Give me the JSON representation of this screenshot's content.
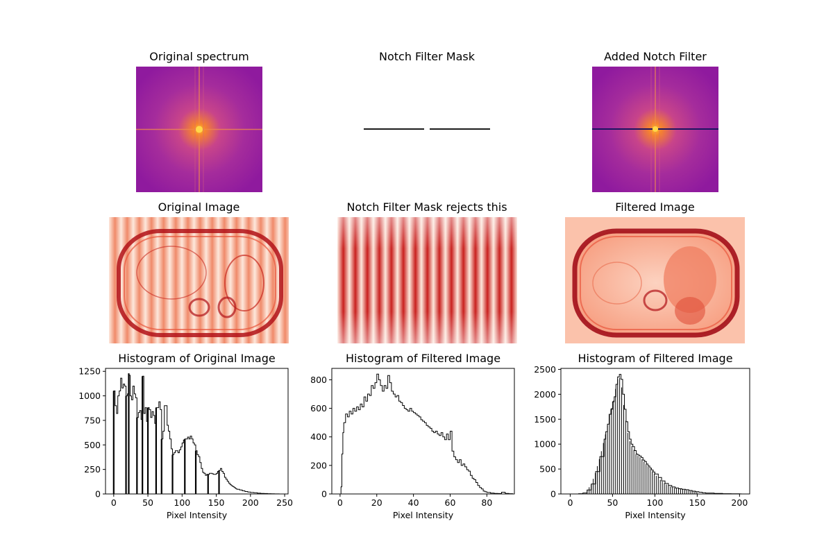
{
  "titles": {
    "spectrum": "Original spectrum",
    "mask": "Notch Filter Mask",
    "added": "Added Notch Filter",
    "orig_image": "Original Image",
    "rejects": "Notch Filter Mask rejects this",
    "filtered_image": "Filtered Image"
  },
  "colors": {
    "spectrum_bg": "#8f1a9e",
    "spectrum_mid": "#c8448a",
    "spectrum_center": "#fdbe2b",
    "notch_line": "#1a1a1a",
    "notch_line_dark": "#1b1560",
    "reds_light": "#fde8dc",
    "reds_mid": "#ef6a4c",
    "reds_dark": "#b11218"
  },
  "chart_data": [
    {
      "type": "bar",
      "title": "Histogram of Original Image",
      "xlabel": "Pixel Intensity",
      "ylabel": "",
      "xlim": [
        -12,
        255
      ],
      "ylim": [
        0,
        1280
      ],
      "xticks": [
        0,
        50,
        100,
        150,
        200,
        250
      ],
      "yticks": [
        0,
        250,
        500,
        750,
        1000,
        1250
      ],
      "envelope": [
        [
          0,
          1050
        ],
        [
          2,
          900
        ],
        [
          4,
          820
        ],
        [
          6,
          1000
        ],
        [
          8,
          1050
        ],
        [
          10,
          1180
        ],
        [
          12,
          1080
        ],
        [
          14,
          1120
        ],
        [
          16,
          1100
        ],
        [
          18,
          1000
        ],
        [
          20,
          1020
        ],
        [
          22,
          1210
        ],
        [
          24,
          1000
        ],
        [
          26,
          960
        ],
        [
          28,
          1100
        ],
        [
          30,
          1020
        ],
        [
          32,
          980
        ],
        [
          34,
          780
        ],
        [
          36,
          830
        ],
        [
          38,
          850
        ],
        [
          40,
          760
        ],
        [
          42,
          1200
        ],
        [
          44,
          820
        ],
        [
          46,
          880
        ],
        [
          48,
          740
        ],
        [
          50,
          880
        ],
        [
          52,
          860
        ],
        [
          54,
          780
        ],
        [
          56,
          840
        ],
        [
          58,
          800
        ],
        [
          60,
          720
        ],
        [
          62,
          880
        ],
        [
          64,
          880
        ],
        [
          66,
          940
        ],
        [
          68,
          860
        ],
        [
          70,
          560
        ],
        [
          72,
          640
        ],
        [
          74,
          900
        ],
        [
          76,
          900
        ],
        [
          78,
          700
        ],
        [
          80,
          640
        ],
        [
          82,
          560
        ],
        [
          84,
          460
        ],
        [
          86,
          400
        ],
        [
          88,
          420
        ],
        [
          90,
          440
        ],
        [
          92,
          440
        ],
        [
          94,
          420
        ],
        [
          96,
          450
        ],
        [
          98,
          480
        ],
        [
          100,
          520
        ],
        [
          102,
          550
        ],
        [
          104,
          560
        ],
        [
          106,
          560
        ],
        [
          108,
          580
        ],
        [
          110,
          560
        ],
        [
          112,
          590
        ],
        [
          114,
          560
        ],
        [
          116,
          520
        ],
        [
          118,
          500
        ],
        [
          120,
          440
        ],
        [
          122,
          400
        ],
        [
          124,
          380
        ],
        [
          126,
          320
        ],
        [
          128,
          260
        ],
        [
          130,
          220
        ],
        [
          132,
          210
        ],
        [
          134,
          190
        ],
        [
          136,
          200
        ],
        [
          138,
          200
        ],
        [
          140,
          210
        ],
        [
          142,
          210
        ],
        [
          144,
          205
        ],
        [
          146,
          200
        ],
        [
          148,
          200
        ],
        [
          150,
          210
        ],
        [
          152,
          230
        ],
        [
          154,
          240
        ],
        [
          156,
          260
        ],
        [
          158,
          230
        ],
        [
          160,
          210
        ],
        [
          162,
          170
        ],
        [
          164,
          150
        ],
        [
          166,
          130
        ],
        [
          168,
          110
        ],
        [
          170,
          95
        ],
        [
          172,
          85
        ],
        [
          174,
          75
        ],
        [
          176,
          65
        ],
        [
          178,
          55
        ],
        [
          180,
          48
        ],
        [
          184,
          40
        ],
        [
          188,
          32
        ],
        [
          192,
          25
        ],
        [
          196,
          20
        ],
        [
          200,
          15
        ],
        [
          205,
          12
        ],
        [
          210,
          8
        ],
        [
          215,
          6
        ],
        [
          220,
          4
        ],
        [
          225,
          3
        ],
        [
          230,
          2
        ],
        [
          235,
          1
        ],
        [
          240,
          1
        ]
      ],
      "spikes": [
        [
          0,
          1050
        ],
        [
          18,
          1000
        ],
        [
          22,
          1230
        ],
        [
          34,
          780
        ],
        [
          42,
          1200
        ],
        [
          50,
          880
        ],
        [
          62,
          880
        ],
        [
          70,
          560
        ],
        [
          86,
          400
        ],
        [
          104,
          560
        ],
        [
          120,
          440
        ],
        [
          138,
          200
        ],
        [
          154,
          240
        ]
      ]
    },
    {
      "type": "bar",
      "title": "Histogram of Filtered Image",
      "xlabel": "Pixel Intensity",
      "ylabel": "",
      "xlim": [
        -4.5,
        95
      ],
      "ylim": [
        0,
        880
      ],
      "xticks": [
        0,
        20,
        40,
        60,
        80
      ],
      "yticks": [
        0,
        200,
        400,
        600,
        800
      ],
      "envelope": [
        [
          0,
          0
        ],
        [
          0.5,
          50
        ],
        [
          1,
          280
        ],
        [
          1.5,
          430
        ],
        [
          2,
          500
        ],
        [
          3,
          560
        ],
        [
          4,
          540
        ],
        [
          5,
          580
        ],
        [
          6,
          560
        ],
        [
          7,
          600
        ],
        [
          8,
          580
        ],
        [
          9,
          610
        ],
        [
          10,
          590
        ],
        [
          11,
          630
        ],
        [
          12,
          610
        ],
        [
          13,
          680
        ],
        [
          14,
          650
        ],
        [
          15,
          700
        ],
        [
          16,
          690
        ],
        [
          17,
          760
        ],
        [
          18,
          740
        ],
        [
          19,
          780
        ],
        [
          20,
          840
        ],
        [
          21,
          800
        ],
        [
          22,
          760
        ],
        [
          23,
          720
        ],
        [
          24,
          760
        ],
        [
          25,
          740
        ],
        [
          26,
          830
        ],
        [
          27,
          780
        ],
        [
          28,
          720
        ],
        [
          29,
          700
        ],
        [
          30,
          680
        ],
        [
          31,
          690
        ],
        [
          32,
          650
        ],
        [
          33,
          640
        ],
        [
          34,
          620
        ],
        [
          35,
          600
        ],
        [
          36,
          590
        ],
        [
          37,
          580
        ],
        [
          38,
          600
        ],
        [
          39,
          580
        ],
        [
          40,
          570
        ],
        [
          41,
          560
        ],
        [
          42,
          550
        ],
        [
          43,
          540
        ],
        [
          44,
          520
        ],
        [
          45,
          510
        ],
        [
          46,
          500
        ],
        [
          47,
          480
        ],
        [
          48,
          470
        ],
        [
          49,
          460
        ],
        [
          50,
          440
        ],
        [
          51,
          430
        ],
        [
          52,
          440
        ],
        [
          53,
          420
        ],
        [
          54,
          410
        ],
        [
          55,
          430
        ],
        [
          56,
          400
        ],
        [
          57,
          380
        ],
        [
          58,
          420
        ],
        [
          59,
          380
        ],
        [
          60,
          440
        ],
        [
          61,
          300
        ],
        [
          62,
          260
        ],
        [
          63,
          240
        ],
        [
          64,
          220
        ],
        [
          65,
          240
        ],
        [
          66,
          200
        ],
        [
          67,
          210
        ],
        [
          68,
          190
        ],
        [
          69,
          170
        ],
        [
          70,
          160
        ],
        [
          71,
          130
        ],
        [
          72,
          110
        ],
        [
          73,
          100
        ],
        [
          74,
          80
        ],
        [
          75,
          60
        ],
        [
          76,
          45
        ],
        [
          77,
          35
        ],
        [
          78,
          20
        ],
        [
          79,
          15
        ],
        [
          80,
          10
        ],
        [
          82,
          6
        ],
        [
          84,
          4
        ],
        [
          86,
          3
        ],
        [
          88,
          12
        ],
        [
          90,
          4
        ],
        [
          92,
          2
        ]
      ],
      "spikes": []
    },
    {
      "type": "bar",
      "title": "Histogram of Filtered Image",
      "xlabel": "Pixel Intensity",
      "ylabel": "",
      "xlim": [
        -11,
        212
      ],
      "ylim": [
        0,
        2520
      ],
      "xticks": [
        0,
        50,
        100,
        150,
        200
      ],
      "yticks": [
        0,
        500,
        1000,
        1500,
        2000,
        2500
      ],
      "envelope": [
        [
          0,
          0
        ],
        [
          10,
          5
        ],
        [
          15,
          20
        ],
        [
          20,
          80
        ],
        [
          25,
          200
        ],
        [
          30,
          450
        ],
        [
          35,
          750
        ],
        [
          40,
          1100
        ],
        [
          42,
          1250
        ],
        [
          44,
          1400
        ],
        [
          46,
          1600
        ],
        [
          48,
          1700
        ],
        [
          50,
          1850
        ],
        [
          52,
          1950
        ],
        [
          54,
          2200
        ],
        [
          56,
          2350
        ],
        [
          58,
          2400
        ],
        [
          60,
          2300
        ],
        [
          62,
          2000
        ],
        [
          64,
          1700
        ],
        [
          66,
          1450
        ],
        [
          68,
          1250
        ],
        [
          70,
          1100
        ],
        [
          72,
          1000
        ],
        [
          74,
          950
        ],
        [
          76,
          870
        ],
        [
          78,
          800
        ],
        [
          80,
          780
        ],
        [
          82,
          760
        ],
        [
          84,
          730
        ],
        [
          86,
          680
        ],
        [
          88,
          650
        ],
        [
          90,
          600
        ],
        [
          92,
          560
        ],
        [
          94,
          520
        ],
        [
          96,
          480
        ],
        [
          98,
          440
        ],
        [
          100,
          400
        ],
        [
          104,
          330
        ],
        [
          108,
          260
        ],
        [
          112,
          210
        ],
        [
          116,
          170
        ],
        [
          120,
          140
        ],
        [
          124,
          120
        ],
        [
          128,
          105
        ],
        [
          132,
          95
        ],
        [
          136,
          85
        ],
        [
          140,
          70
        ],
        [
          144,
          55
        ],
        [
          148,
          45
        ],
        [
          152,
          35
        ],
        [
          156,
          25
        ],
        [
          160,
          18
        ],
        [
          170,
          10
        ],
        [
          180,
          5
        ],
        [
          190,
          3
        ],
        [
          200,
          1
        ]
      ],
      "spikes": []
    }
  ]
}
